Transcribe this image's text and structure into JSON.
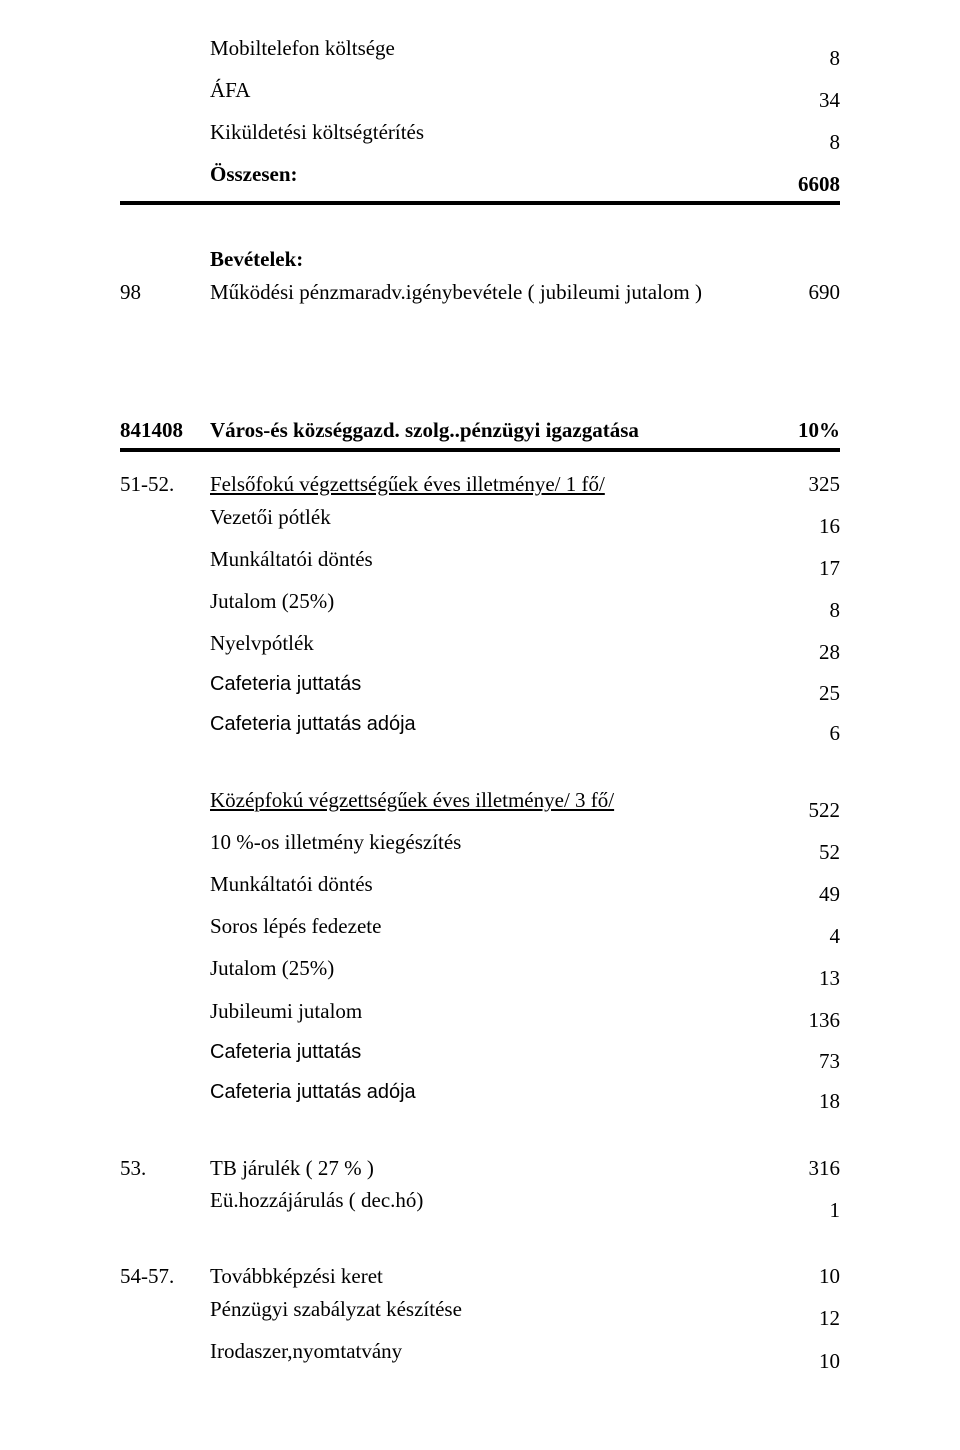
{
  "section_top": {
    "rows": [
      {
        "label": "Mobiltelefon költsége",
        "value": "8"
      },
      {
        "label": "ÁFA",
        "value": "34"
      },
      {
        "label": "Kiküldetési költségtérítés",
        "value": "8"
      }
    ],
    "total": {
      "label": "Összesen:",
      "value": "6608"
    }
  },
  "bevetelek": {
    "heading": "Bevételek:",
    "rows": [
      {
        "num": "98",
        "label": "Működési pénzmaradv.igénybevétele ( jubileumi jutalom )",
        "value": "690"
      }
    ]
  },
  "section_841408": {
    "header": {
      "num": "841408",
      "label": "Város-és községgazd. szolg..pénzügyi igazgatása",
      "value": "10%"
    }
  },
  "group_5152": {
    "num": "51-52.",
    "lead": {
      "label": "Felsőfokú végzettségűek éves illetménye/ 1 fő/",
      "value": "325"
    },
    "rows": [
      {
        "label": "Vezetői pótlék",
        "value": "16"
      },
      {
        "label": "Munkáltatói döntés",
        "value": "17"
      },
      {
        "label": "Jutalom (25%)",
        "value": "8"
      },
      {
        "label": "Nyelvpótlék",
        "value": "28"
      },
      {
        "label": "Cafeteria juttatás",
        "value": "25",
        "arial": true
      },
      {
        "label": "Cafeteria juttatás adója",
        "value": "6",
        "arial": true
      }
    ]
  },
  "group_kozep": {
    "lead": {
      "label": "Középfokú végzettségűek éves illetménye/ 3 fő/",
      "value": "522"
    },
    "rows": [
      {
        "label": "10 %-os illetmény kiegészítés",
        "value": "52"
      },
      {
        "label": "Munkáltatói döntés",
        "value": "49"
      },
      {
        "label": "Soros lépés fedezete",
        "value": "4"
      },
      {
        "label": "Jutalom (25%)",
        "value": "13"
      },
      {
        "label": "Jubileumi jutalom",
        "value": "136"
      },
      {
        "label": "Cafeteria juttatás",
        "value": "73",
        "arial": true
      },
      {
        "label": "Cafeteria juttatás adója",
        "value": "18",
        "arial": true
      }
    ]
  },
  "group_53": {
    "num": "53.",
    "rows": [
      {
        "label": "TB járulék  ( 27 % )",
        "value": "316"
      },
      {
        "label": "Eü.hozzájárulás ( dec.hó)",
        "value": "1"
      }
    ]
  },
  "group_5457": {
    "num": "54-57.",
    "rows": [
      {
        "label": "Továbbképzési keret",
        "value": "10"
      },
      {
        "label": "Pénzügyi szabályzat készítése",
        "value": "12"
      },
      {
        "label": "Irodaszer,nyomtatvány",
        "value": "10"
      }
    ]
  }
}
